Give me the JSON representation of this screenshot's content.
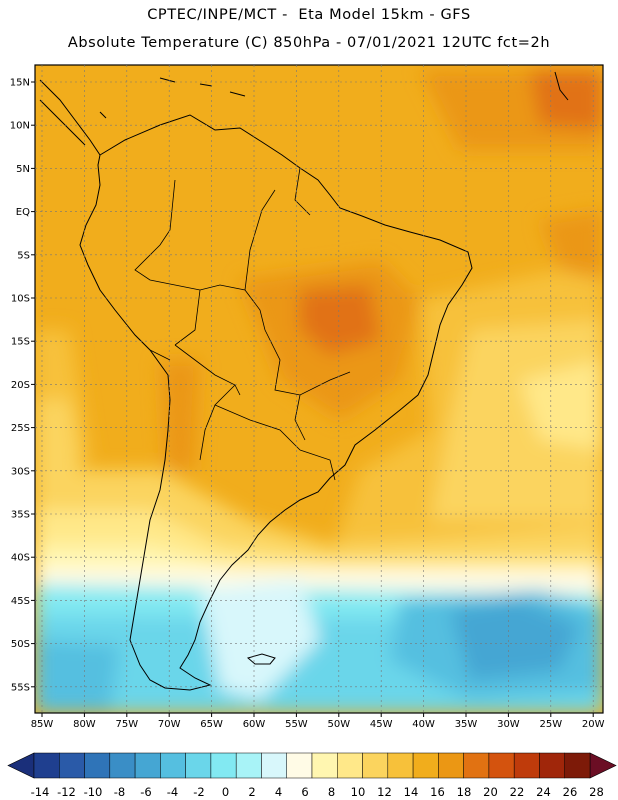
{
  "header": {
    "line1": "CPTEC/INPE/MCT -  Eta Model 15km - GFS",
    "line2": "Absolute Temperature (C) 850hPa - 07/01/2021 12UTC fct=2h"
  },
  "map": {
    "lat_labels": [
      "15N",
      "10N",
      "5N",
      "EQ",
      "5S",
      "10S",
      "15S",
      "20S",
      "25S",
      "30S",
      "35S",
      "40S",
      "45S",
      "50S",
      "55S"
    ],
    "lon_labels": [
      "85W",
      "80W",
      "75W",
      "70W",
      "65W",
      "60W",
      "55W",
      "50W",
      "45W",
      "40W",
      "35W",
      "30W",
      "25W",
      "20W"
    ],
    "lat_values": [
      15,
      10,
      5,
      0,
      -5,
      -10,
      -15,
      -20,
      -25,
      -30,
      -35,
      -40,
      -45,
      -50,
      -55
    ],
    "lon_values": [
      -85,
      -80,
      -75,
      -70,
      -65,
      -60,
      -55,
      -50,
      -45,
      -40,
      -35,
      -30,
      -25,
      -20
    ],
    "grid": true,
    "coastline_color": "#000000"
  },
  "colorbar": {
    "labels": [
      "-14",
      "-12",
      "-10",
      "-8",
      "-6",
      "-4",
      "-2",
      "0",
      "2",
      "4",
      "6",
      "8",
      "10",
      "12",
      "14",
      "16",
      "18",
      "20",
      "22",
      "24",
      "26",
      "28"
    ],
    "colors": [
      "#1f3f8f",
      "#2a5aa8",
      "#2f74b8",
      "#3a8ec6",
      "#45a6d3",
      "#55bfe0",
      "#6ad6ea",
      "#82e9f2",
      "#a8f3f7",
      "#d8f7fb",
      "#fffbe6",
      "#fff6b0",
      "#ffe889",
      "#fbd45e",
      "#f7c13a",
      "#f1ad1c",
      "#eb9714",
      "#e17212",
      "#d4530e",
      "#bf3b0b",
      "#a0260a",
      "#7d1a08"
    ],
    "arrow_left_color": "#1a2f7a",
    "arrow_right_color": "#6b0e24"
  }
}
